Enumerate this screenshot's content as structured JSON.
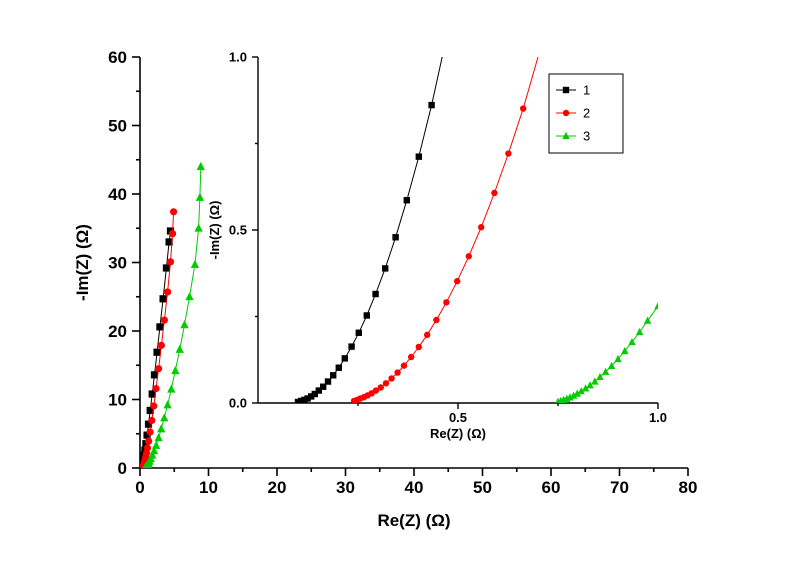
{
  "figure": {
    "background": "#ffffff"
  },
  "chart_data": {
    "type": "scatter",
    "description": "Nyquist impedance plot with zoomed inset",
    "series": [
      {
        "name": "1",
        "color": "#000000",
        "marker": "square",
        "points": [
          [
            0.1,
            0.003
          ],
          [
            0.108,
            0.006
          ],
          [
            0.116,
            0.009
          ],
          [
            0.124,
            0.013
          ],
          [
            0.133,
            0.019
          ],
          [
            0.142,
            0.026
          ],
          [
            0.152,
            0.036
          ],
          [
            0.163,
            0.047
          ],
          [
            0.175,
            0.062
          ],
          [
            0.188,
            0.08
          ],
          [
            0.202,
            0.102
          ],
          [
            0.217,
            0.129
          ],
          [
            0.234,
            0.163
          ],
          [
            0.252,
            0.203
          ],
          [
            0.272,
            0.253
          ],
          [
            0.294,
            0.315
          ],
          [
            0.318,
            0.389
          ],
          [
            0.344,
            0.479
          ],
          [
            0.372,
            0.586
          ],
          [
            0.402,
            0.712
          ],
          [
            0.434,
            0.861
          ],
          [
            0.47,
            1.05
          ],
          [
            0.53,
            1.4
          ],
          [
            0.61,
            1.9
          ],
          [
            0.72,
            2.6
          ],
          [
            0.86,
            3.55
          ],
          [
            1.03,
            4.8
          ],
          [
            1.24,
            6.4
          ],
          [
            1.49,
            8.4
          ],
          [
            1.78,
            10.8
          ],
          [
            2.11,
            13.6
          ],
          [
            2.49,
            16.9
          ],
          [
            2.91,
            20.6
          ],
          [
            3.37,
            24.7
          ],
          [
            3.86,
            29.2
          ],
          [
            4.25,
            33.0
          ],
          [
            4.45,
            34.6
          ]
        ]
      },
      {
        "name": "2",
        "color": "#FF0000",
        "marker": "circle",
        "points": [
          [
            0.24,
            0.006
          ],
          [
            0.248,
            0.009
          ],
          [
            0.256,
            0.013
          ],
          [
            0.265,
            0.017
          ],
          [
            0.274,
            0.022
          ],
          [
            0.284,
            0.028
          ],
          [
            0.295,
            0.036
          ],
          [
            0.307,
            0.045
          ],
          [
            0.32,
            0.057
          ],
          [
            0.334,
            0.071
          ],
          [
            0.349,
            0.088
          ],
          [
            0.365,
            0.108
          ],
          [
            0.383,
            0.133
          ],
          [
            0.402,
            0.162
          ],
          [
            0.423,
            0.197
          ],
          [
            0.446,
            0.24
          ],
          [
            0.471,
            0.291
          ],
          [
            0.498,
            0.352
          ],
          [
            0.527,
            0.424
          ],
          [
            0.558,
            0.508
          ],
          [
            0.591,
            0.607
          ],
          [
            0.626,
            0.721
          ],
          [
            0.663,
            0.851
          ],
          [
            0.705,
            1.02
          ],
          [
            0.76,
            1.28
          ],
          [
            0.84,
            1.65
          ],
          [
            0.95,
            2.18
          ],
          [
            1.09,
            2.92
          ],
          [
            1.26,
            3.92
          ],
          [
            1.47,
            5.25
          ],
          [
            1.72,
            6.95
          ],
          [
            2.01,
            9.05
          ],
          [
            2.34,
            11.6
          ],
          [
            2.71,
            14.5
          ],
          [
            3.12,
            17.9
          ],
          [
            3.56,
            21.6
          ],
          [
            4.03,
            25.7
          ],
          [
            4.45,
            30.1
          ],
          [
            4.75,
            34.2
          ],
          [
            4.9,
            37.4
          ]
        ]
      },
      {
        "name": "3",
        "color": "#00CC00",
        "marker": "triangle",
        "points": [
          [
            0.75,
            0.003
          ],
          [
            0.757,
            0.006
          ],
          [
            0.764,
            0.009
          ],
          [
            0.772,
            0.012
          ],
          [
            0.78,
            0.016
          ],
          [
            0.789,
            0.021
          ],
          [
            0.798,
            0.027
          ],
          [
            0.808,
            0.034
          ],
          [
            0.819,
            0.042
          ],
          [
            0.83,
            0.051
          ],
          [
            0.842,
            0.062
          ],
          [
            0.855,
            0.075
          ],
          [
            0.869,
            0.09
          ],
          [
            0.884,
            0.107
          ],
          [
            0.9,
            0.127
          ],
          [
            0.917,
            0.15
          ],
          [
            0.935,
            0.176
          ],
          [
            0.954,
            0.205
          ],
          [
            0.974,
            0.238
          ],
          [
            1.0,
            0.28
          ],
          [
            1.06,
            0.37
          ],
          [
            1.14,
            0.5
          ],
          [
            1.25,
            0.69
          ],
          [
            1.4,
            0.97
          ],
          [
            1.58,
            1.35
          ],
          [
            1.8,
            1.86
          ],
          [
            2.06,
            2.5
          ],
          [
            2.36,
            3.3
          ],
          [
            2.71,
            4.4
          ],
          [
            3.1,
            5.7
          ],
          [
            3.54,
            7.3
          ],
          [
            4.03,
            9.2
          ],
          [
            4.57,
            11.5
          ],
          [
            5.16,
            14.2
          ],
          [
            5.8,
            17.3
          ],
          [
            6.49,
            20.9
          ],
          [
            7.23,
            25.0
          ],
          [
            8.02,
            29.7
          ],
          [
            8.55,
            35.0
          ],
          [
            8.75,
            39.5
          ],
          [
            8.87,
            44.0
          ]
        ]
      }
    ],
    "main_axes": {
      "xlabel": "Re(Z) (Ω)",
      "ylabel": "-Im(Z) (Ω)",
      "xlim": [
        0,
        80
      ],
      "ylim": [
        0,
        60
      ],
      "xticks": [
        0,
        10,
        20,
        30,
        40,
        50,
        60,
        70,
        80
      ],
      "xtick_labels": [
        "0",
        "10",
        "20",
        "30",
        "40",
        "50",
        "60",
        "70",
        "80"
      ],
      "xminor": [
        5,
        15,
        25,
        35,
        45,
        55,
        65,
        75
      ],
      "yticks": [
        0,
        10,
        20,
        30,
        40,
        50,
        60
      ],
      "ytick_labels": [
        "0",
        "10",
        "20",
        "30",
        "40",
        "50",
        "60"
      ],
      "yminor": [
        5,
        15,
        25,
        35,
        45,
        55
      ],
      "grid": false,
      "legend": null
    },
    "inset_axes": {
      "xlabel": "Re(Z) (Ω)",
      "ylabel": "-Im(Z) (Ω)",
      "xlim": [
        0,
        1.0
      ],
      "ylim": [
        0,
        1.0
      ],
      "xticks": [
        0.5,
        1.0
      ],
      "xtick_labels": [
        "0.5",
        "1.0"
      ],
      "xminor": [
        0.25,
        0.75
      ],
      "yticks": [
        0,
        0.5,
        1.0
      ],
      "ytick_labels": [
        "0.0",
        "0.5",
        "1.0"
      ],
      "yminor": [
        0.25,
        0.75
      ],
      "grid": false,
      "legend": {
        "items": [
          "1",
          "2",
          "3"
        ],
        "position": "top-right"
      }
    }
  }
}
